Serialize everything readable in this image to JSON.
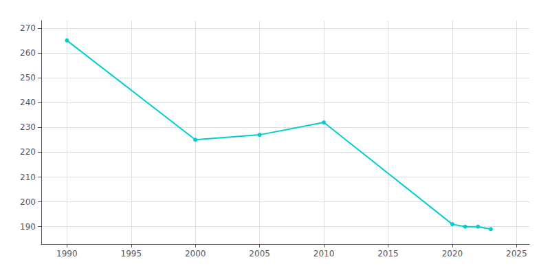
{
  "chart_data": {
    "type": "line",
    "x": [
      1990,
      2000,
      2005,
      2010,
      2020,
      2021,
      2022,
      2023
    ],
    "values": [
      265,
      225,
      227,
      232,
      191,
      190,
      190,
      189
    ],
    "color": "#00CED1",
    "marker": "circle",
    "xlim": [
      1988,
      2026
    ],
    "xticks": [
      1990,
      1995,
      2000,
      2005,
      2010,
      2015,
      2020,
      2025
    ],
    "ylim": [
      183,
      273
    ],
    "yticks": [
      190,
      200,
      210,
      220,
      230,
      240,
      250,
      260,
      270
    ],
    "grid": true
  }
}
